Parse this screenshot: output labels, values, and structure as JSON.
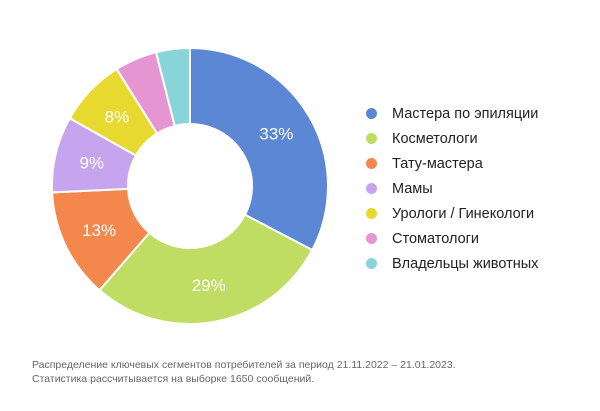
{
  "chart_data": {
    "type": "pie",
    "donut": true,
    "categories": [
      "Мастера по эпиляции",
      "Косметологи",
      "Тату-мастера",
      "Мамы",
      "Урологи / Гинекологи",
      "Стоматологи",
      "Владельцы животных"
    ],
    "values": [
      33,
      29,
      13,
      9,
      8,
      5,
      4
    ],
    "data_labels": [
      "33%",
      "29%",
      "13%",
      "9%",
      "8%",
      "",
      ""
    ],
    "colors": [
      "#5B87D4",
      "#BEDD62",
      "#F4874B",
      "#C6A5EE",
      "#E8D930",
      "#E695D3",
      "#89D4D8"
    ],
    "legend_position": "right",
    "notes": [
      "Распределение ключевых сегментов потребителей за период 21.11.2022 – 21.01.2023.",
      "Статистика рассчитывается на выборке 1650 сообщений."
    ]
  }
}
